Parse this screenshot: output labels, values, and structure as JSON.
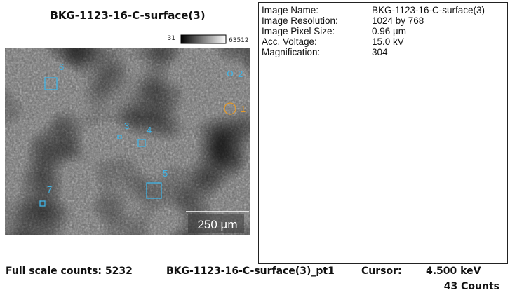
{
  "image_panel": {
    "title": "BKG-1123-16-C-surface(3)",
    "colorbar": {
      "min": "31",
      "max": "63512"
    },
    "markers": [
      {
        "label": "6"
      },
      {
        "label": "2"
      },
      {
        "label": "1"
      },
      {
        "label": "3"
      },
      {
        "label": "4"
      },
      {
        "label": "5"
      },
      {
        "label": "7"
      }
    ],
    "scale_bar": "250 µm"
  },
  "info": {
    "rows": [
      [
        "Image Name:",
        "BKG-1123-16-C-surface(3)"
      ],
      [
        "Image Resolution:",
        "1024 by 768"
      ],
      [
        "Image Pixel Size:",
        "0.96 µm"
      ],
      [
        "Acc. Voltage:",
        "15.0 kV"
      ],
      [
        "Magnification:",
        "304"
      ]
    ]
  },
  "footer": {
    "full_scale": "Full scale counts: 5232",
    "spectrum": "BKG-1123-16-C-surface(3)_pt1",
    "cursor_label": "Cursor:",
    "cursor_energy": "4.500 keV",
    "cursor_counts": "43 Counts"
  }
}
